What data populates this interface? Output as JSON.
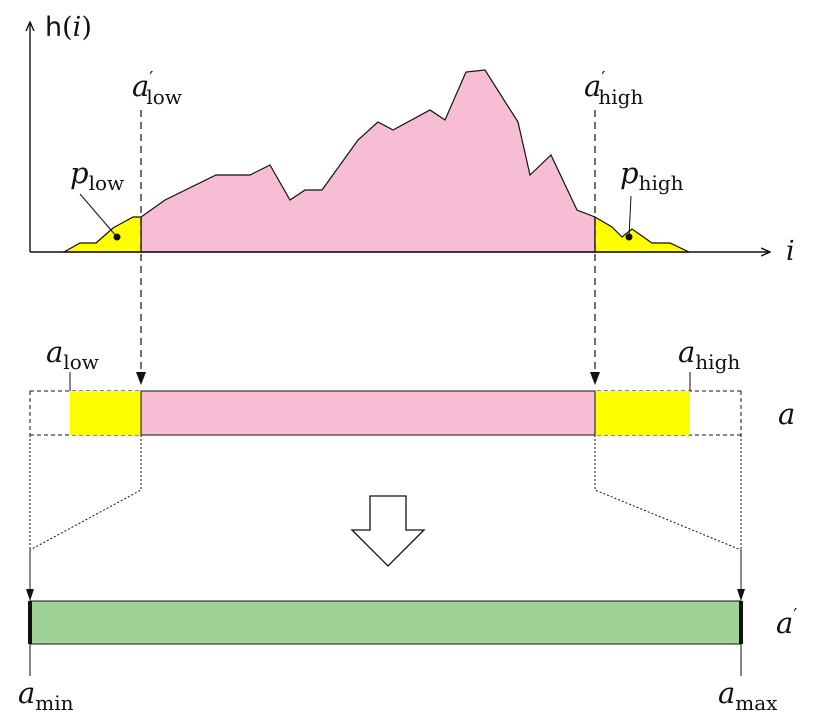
{
  "axes": {
    "y_func": "h",
    "y_paren_open": "(",
    "y_var": "i",
    "y_paren_close": ")",
    "x_label": "i"
  },
  "labels": {
    "a_low_prime": {
      "base": "a",
      "prime": "′",
      "sub": "low"
    },
    "a_high_prime": {
      "base": "a",
      "prime": "′",
      "sub": "high"
    },
    "p_low": {
      "base": "p",
      "sub": "low"
    },
    "p_high": {
      "base": "p",
      "sub": "high"
    },
    "a_low": {
      "base": "a",
      "sub": "low"
    },
    "a_high": {
      "base": "a",
      "sub": "high"
    },
    "a_bar": "a",
    "a_prime_bar": {
      "base": "a",
      "prime": "′"
    },
    "a_min": {
      "base": "a",
      "sub": "min"
    },
    "a_max": {
      "base": "a",
      "sub": "max"
    }
  },
  "colors": {
    "tail": "#ffff00",
    "center": "#f7bdd5",
    "output": "#9fd294",
    "stroke": "#111111"
  },
  "icons": {
    "arrow": "down-arrow-icon"
  }
}
